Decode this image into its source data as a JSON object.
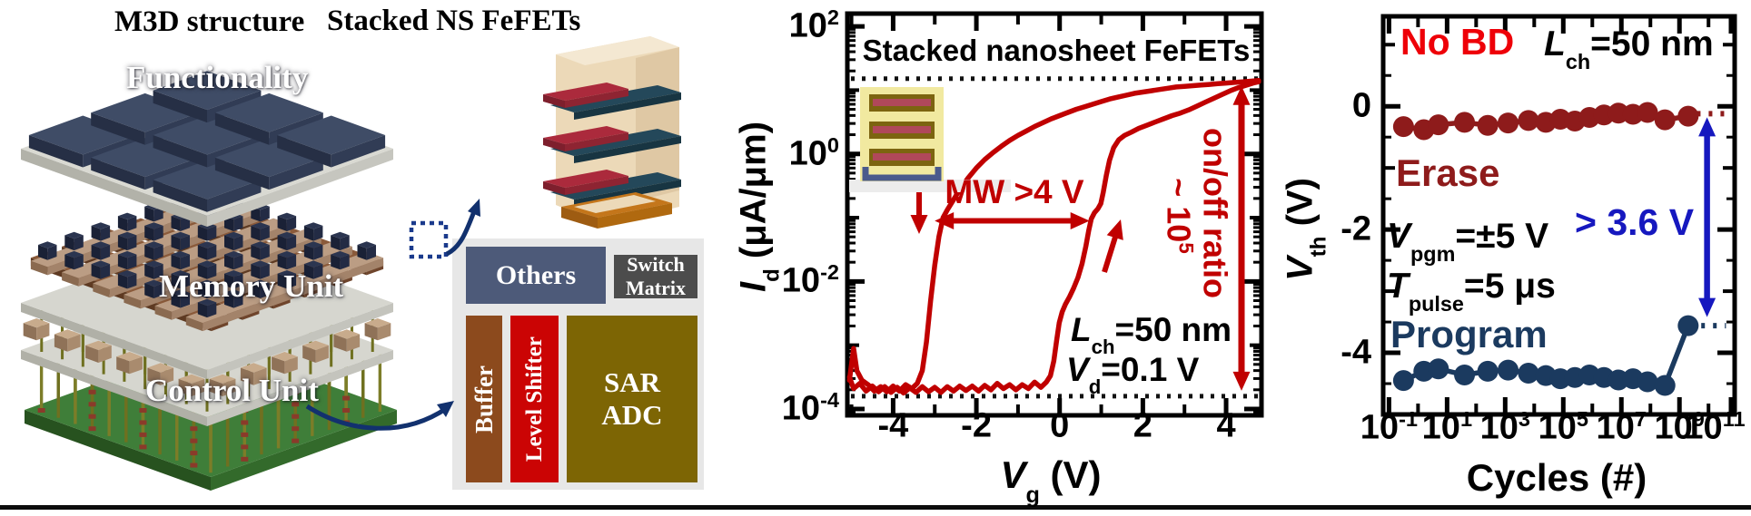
{
  "left_panel": {
    "m3d_title": "M3D structure",
    "ns_title": "Stacked NS FeFETs",
    "functionality_label": "Functionality",
    "memory_label": "Memory Unit",
    "control_label": "Control Unit",
    "block_diagram": {
      "others": "Others",
      "switch_line1": "Switch",
      "switch_line2": "Matrix",
      "buffer": "Buffer",
      "level_shifter": "Level Shifter",
      "sar_line1": "SAR",
      "sar_line2": "ADC"
    }
  },
  "chart_data": [
    {
      "id": "transfer_curve",
      "type": "line",
      "title": "Stacked nanosheet FeFETs",
      "xlabel_parts": {
        "pre": "V",
        "sub": "g",
        "post": " (V)"
      },
      "ylabel_parts": {
        "pre": "I",
        "sub": "d",
        "post": " (μA/μm)"
      },
      "xlim": [
        -5.1,
        4.85
      ],
      "y_log_lim": [
        -4.1,
        2.2
      ],
      "xticks": [
        -4,
        -2,
        0,
        2,
        4
      ],
      "yticks_exp": [
        2,
        0,
        -2,
        -4
      ],
      "grid": false,
      "legend": "none",
      "ref_levels_exp": {
        "on_state": 1.18,
        "off_state": -3.8
      },
      "series": [
        {
          "name": "forward_sweep",
          "points_vg_logid": [
            [
              -5.05,
              -3.5
            ],
            [
              -4.95,
              -3.68
            ],
            [
              -4.8,
              -3.6
            ],
            [
              -4.65,
              -3.72
            ],
            [
              -4.5,
              -3.64
            ],
            [
              -4.35,
              -3.73
            ],
            [
              -4.2,
              -3.65
            ],
            [
              -4.05,
              -3.74
            ],
            [
              -3.9,
              -3.66
            ],
            [
              -3.75,
              -3.75
            ],
            [
              -3.6,
              -3.67
            ],
            [
              -3.45,
              -3.74
            ],
            [
              -3.3,
              -3.65
            ],
            [
              -3.15,
              -3.73
            ],
            [
              -3.0,
              -3.66
            ],
            [
              -2.85,
              -3.74
            ],
            [
              -2.7,
              -3.65
            ],
            [
              -2.55,
              -3.72
            ],
            [
              -2.4,
              -3.64
            ],
            [
              -2.25,
              -3.71
            ],
            [
              -2.1,
              -3.64
            ],
            [
              -1.95,
              -3.72
            ],
            [
              -1.8,
              -3.63
            ],
            [
              -1.65,
              -3.7
            ],
            [
              -1.5,
              -3.6
            ],
            [
              -1.35,
              -3.68
            ],
            [
              -1.2,
              -3.62
            ],
            [
              -1.05,
              -3.7
            ],
            [
              -0.9,
              -3.62
            ],
            [
              -0.75,
              -3.68
            ],
            [
              -0.6,
              -3.58
            ],
            [
              -0.45,
              -3.66
            ],
            [
              -0.32,
              -3.58
            ],
            [
              -0.22,
              -3.48
            ],
            [
              -0.14,
              -3.25
            ],
            [
              -0.07,
              -2.92
            ],
            [
              -0.01,
              -2.65
            ],
            [
              0.06,
              -2.48
            ],
            [
              0.14,
              -2.36
            ],
            [
              0.24,
              -2.24
            ],
            [
              0.34,
              -2.1
            ],
            [
              0.44,
              -1.94
            ],
            [
              0.54,
              -1.72
            ],
            [
              0.63,
              -1.45
            ],
            [
              0.7,
              -1.2
            ],
            [
              0.76,
              -1.02
            ],
            [
              0.84,
              -0.92
            ],
            [
              0.92,
              -0.86
            ],
            [
              0.99,
              -0.78
            ],
            [
              1.05,
              -0.6
            ],
            [
              1.12,
              -0.34
            ],
            [
              1.2,
              -0.1
            ],
            [
              1.3,
              0.1
            ],
            [
              1.42,
              0.22
            ],
            [
              1.56,
              0.29
            ],
            [
              1.72,
              0.34
            ],
            [
              1.9,
              0.4
            ],
            [
              2.1,
              0.45
            ],
            [
              2.3,
              0.5
            ],
            [
              2.5,
              0.55
            ],
            [
              2.7,
              0.6
            ],
            [
              2.9,
              0.64
            ],
            [
              3.1,
              0.69
            ],
            [
              3.3,
              0.75
            ],
            [
              3.5,
              0.81
            ],
            [
              3.7,
              0.87
            ],
            [
              3.9,
              0.93
            ],
            [
              4.1,
              0.99
            ],
            [
              4.3,
              1.04
            ],
            [
              4.5,
              1.08
            ],
            [
              4.65,
              1.11
            ],
            [
              4.78,
              1.13
            ]
          ]
        },
        {
          "name": "reverse_sweep",
          "points_vg_logid": [
            [
              4.78,
              1.15
            ],
            [
              4.6,
              1.14
            ],
            [
              4.4,
              1.13
            ],
            [
              4.2,
              1.12
            ],
            [
              4.0,
              1.11
            ],
            [
              3.8,
              1.1
            ],
            [
              3.6,
              1.09
            ],
            [
              3.4,
              1.08
            ],
            [
              3.2,
              1.07
            ],
            [
              3.0,
              1.06
            ],
            [
              2.8,
              1.05
            ],
            [
              2.6,
              1.03
            ],
            [
              2.4,
              1.01
            ],
            [
              2.2,
              0.99
            ],
            [
              2.0,
              0.97
            ],
            [
              1.8,
              0.95
            ],
            [
              1.6,
              0.92
            ],
            [
              1.4,
              0.89
            ],
            [
              1.2,
              0.86
            ],
            [
              1.0,
              0.82
            ],
            [
              0.8,
              0.78
            ],
            [
              0.6,
              0.74
            ],
            [
              0.4,
              0.7
            ],
            [
              0.2,
              0.65
            ],
            [
              0.0,
              0.6
            ],
            [
              -0.2,
              0.55
            ],
            [
              -0.4,
              0.49
            ],
            [
              -0.6,
              0.43
            ],
            [
              -0.8,
              0.36
            ],
            [
              -1.0,
              0.29
            ],
            [
              -1.2,
              0.21
            ],
            [
              -1.4,
              0.12
            ],
            [
              -1.6,
              0.02
            ],
            [
              -1.8,
              -0.09
            ],
            [
              -2.0,
              -0.22
            ],
            [
              -2.2,
              -0.38
            ],
            [
              -2.4,
              -0.56
            ],
            [
              -2.55,
              -0.72
            ],
            [
              -2.7,
              -0.88
            ],
            [
              -2.8,
              -1.0
            ],
            [
              -2.9,
              -1.3
            ],
            [
              -3.0,
              -1.75
            ],
            [
              -3.1,
              -2.3
            ],
            [
              -3.2,
              -2.95
            ],
            [
              -3.3,
              -3.4
            ],
            [
              -3.42,
              -3.6
            ],
            [
              -3.55,
              -3.68
            ],
            [
              -3.7,
              -3.62
            ],
            [
              -3.85,
              -3.72
            ],
            [
              -4.0,
              -3.64
            ],
            [
              -4.15,
              -3.73
            ],
            [
              -4.3,
              -3.65
            ],
            [
              -4.45,
              -3.72
            ],
            [
              -4.6,
              -3.62
            ],
            [
              -4.75,
              -3.55
            ],
            [
              -4.87,
              -3.4
            ],
            [
              -4.95,
              -3.05
            ],
            [
              -5.0,
              -3.3
            ],
            [
              -5.05,
              -3.55
            ]
          ]
        }
      ],
      "annotations": {
        "mw_label": "MW >4 V",
        "mw_arrow": {
          "x1_vg": -3.0,
          "x2_vg": 0.72,
          "y_exp": -1.05
        },
        "onoff_line1": "on/off ratio",
        "onoff_line2_parts": {
          "pre": "~ 10",
          "sup": "5"
        },
        "lch_parts": {
          "pre": "L",
          "sub": "ch",
          "post": "=50 nm"
        },
        "vd_parts": {
          "pre": "V",
          "sub": "d",
          "post": "=0.1 V"
        }
      }
    },
    {
      "id": "endurance",
      "type": "scatter",
      "xlabel": "Cycles (#)",
      "ylabel_parts": {
        "pre": "V",
        "sub": "th",
        "post": " (V)"
      },
      "x_log_lim": [
        -1.2,
        10.9
      ],
      "ylim": [
        -5.0,
        1.46
      ],
      "xticks_exp": [
        -1,
        1,
        3,
        5,
        7,
        9,
        11
      ],
      "yticks": [
        0,
        -2,
        -4
      ],
      "grid": false,
      "series": [
        {
          "name": "Erase",
          "x_exp": [
            -0.5,
            0.2,
            0.7,
            1.6,
            2.4,
            3.1,
            3.8,
            4.4,
            4.9,
            5.4,
            5.9,
            6.4,
            6.9,
            7.4,
            7.9,
            8.5,
            9.3
          ],
          "vth": [
            -0.33,
            -0.38,
            -0.3,
            -0.26,
            -0.31,
            -0.27,
            -0.23,
            -0.26,
            -0.21,
            -0.24,
            -0.18,
            -0.14,
            -0.11,
            -0.13,
            -0.1,
            -0.22,
            -0.16
          ]
        },
        {
          "name": "Program",
          "x_exp": [
            -0.5,
            0.2,
            0.7,
            1.6,
            2.4,
            3.1,
            3.8,
            4.4,
            4.9,
            5.4,
            5.9,
            6.4,
            6.9,
            7.4,
            7.9,
            8.5,
            9.3
          ],
          "vth": [
            -4.45,
            -4.3,
            -4.26,
            -4.36,
            -4.3,
            -4.28,
            -4.33,
            -4.37,
            -4.42,
            -4.4,
            -4.36,
            -4.4,
            -4.44,
            -4.42,
            -4.47,
            -4.53,
            -3.56
          ]
        }
      ],
      "annotations": {
        "no_bd": "No BD",
        "lch_parts": {
          "pre": "L",
          "sub": "ch",
          "post": "=50 nm"
        },
        "erase_label": "Erase",
        "program_label": "Program",
        "vpgm_parts": {
          "pre": "V",
          "sub": "pgm",
          "post": "=±5 V"
        },
        "tpulse_parts": {
          "pre": "T",
          "sub": "pulse",
          "post": "=5 μs"
        },
        "window_label": "> 3.6 V",
        "window_arrow": {
          "x_exp": 9.95,
          "v_top": -0.18,
          "v_bot": -3.42
        },
        "erase_ref": {
          "v": -0.12,
          "x1_exp": 9.6,
          "x2_exp": 10.75
        },
        "program_ref": {
          "v": -3.56,
          "x1_exp": 9.75,
          "x2_exp": 10.6
        }
      }
    }
  ],
  "colors": {
    "curve_red": "#c00000",
    "no_bd_red": "#ee0008",
    "erase_dark_red": "#8e1b1b",
    "program_navy": "#1b3a5f",
    "window_blue": "#1618bf",
    "dotted_black": "#111111",
    "frame_black": "#000000",
    "panel_gray": "#e7e7e7",
    "others_slate": "#4d5a79",
    "switch_gray": "#4c4c4c",
    "buffer_brown": "#8c4a1d",
    "level_shifter_red": "#cb0404",
    "sar_olive": "#7d6504",
    "control_green": "#40803a"
  }
}
